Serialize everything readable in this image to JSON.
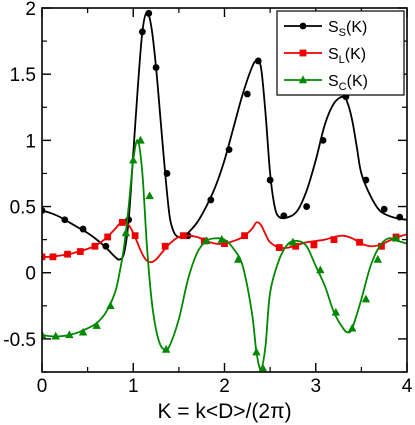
{
  "chart_data": {
    "type": "line",
    "xlabel": "K = k<D>/(2π)",
    "xlim": [
      0,
      4
    ],
    "ylim": [
      -0.75,
      2
    ],
    "xticks": [
      "0",
      "1",
      "2",
      "3",
      "4"
    ],
    "yticks": [
      "-0.5",
      "0",
      "0.5",
      "1",
      "1.5",
      "2"
    ],
    "grid": false,
    "legend_position": "top-right",
    "series": [
      {
        "name": "S",
        "subscript": "S",
        "suffix": "(K)",
        "color": "#000000",
        "marker": "circle",
        "x": [
          0,
          0.1,
          0.2,
          0.3,
          0.4,
          0.5,
          0.6,
          0.7,
          0.8,
          0.85,
          0.9,
          0.95,
          1.0,
          1.05,
          1.1,
          1.15,
          1.2,
          1.25,
          1.3,
          1.35,
          1.4,
          1.45,
          1.5,
          1.55,
          1.6,
          1.7,
          1.8,
          1.9,
          2.0,
          2.1,
          2.2,
          2.3,
          2.35,
          2.4,
          2.45,
          2.5,
          2.55,
          2.6,
          2.7,
          2.8,
          2.9,
          3.0,
          3.1,
          3.2,
          3.3,
          3.35,
          3.4,
          3.45,
          3.5,
          3.6,
          3.7,
          3.8,
          3.9,
          4.0
        ],
        "y": [
          0.47,
          0.45,
          0.42,
          0.38,
          0.34,
          0.3,
          0.25,
          0.19,
          0.12,
          0.1,
          0.15,
          0.4,
          0.9,
          1.4,
          1.82,
          1.97,
          1.85,
          1.55,
          1.15,
          0.75,
          0.42,
          0.3,
          0.27,
          0.27,
          0.3,
          0.38,
          0.5,
          0.65,
          0.85,
          1.1,
          1.35,
          1.55,
          1.6,
          1.55,
          1.2,
          0.75,
          0.5,
          0.42,
          0.42,
          0.47,
          0.62,
          0.85,
          1.12,
          1.28,
          1.33,
          1.28,
          1.15,
          0.95,
          0.75,
          0.58,
          0.47,
          0.43,
          0.41,
          0.4
        ],
        "marker_x": [
          0.0,
          0.25,
          0.45,
          0.7,
          0.95,
          1.1,
          1.17,
          1.25,
          1.37,
          1.6,
          1.85,
          2.05,
          2.25,
          2.37,
          2.5,
          2.65,
          2.9,
          3.08,
          3.33,
          3.55,
          3.75,
          3.92
        ],
        "marker_y": [
          0.47,
          0.4,
          0.33,
          0.2,
          0.4,
          1.82,
          1.96,
          1.55,
          0.75,
          0.28,
          0.55,
          0.93,
          1.35,
          1.6,
          0.7,
          0.43,
          0.5,
          1.0,
          1.33,
          0.7,
          0.48,
          0.42
        ]
      },
      {
        "name": "S",
        "subscript": "L",
        "suffix": "(K)",
        "color": "#ee0000",
        "marker": "square",
        "x": [
          0,
          0.1,
          0.2,
          0.3,
          0.4,
          0.5,
          0.6,
          0.7,
          0.8,
          0.85,
          0.9,
          0.95,
          1.0,
          1.05,
          1.1,
          1.15,
          1.2,
          1.25,
          1.3,
          1.4,
          1.5,
          1.6,
          1.7,
          1.8,
          1.9,
          2.0,
          2.1,
          2.2,
          2.3,
          2.35,
          2.4,
          2.45,
          2.5,
          2.6,
          2.7,
          2.8,
          2.9,
          3.0,
          3.1,
          3.2,
          3.3,
          3.4,
          3.5,
          3.6,
          3.7,
          3.8,
          3.9,
          4.0
        ],
        "y": [
          0.12,
          0.12,
          0.13,
          0.14,
          0.16,
          0.18,
          0.21,
          0.26,
          0.33,
          0.37,
          0.38,
          0.36,
          0.3,
          0.22,
          0.14,
          0.09,
          0.08,
          0.1,
          0.14,
          0.22,
          0.27,
          0.28,
          0.27,
          0.24,
          0.22,
          0.22,
          0.24,
          0.27,
          0.33,
          0.38,
          0.36,
          0.29,
          0.23,
          0.19,
          0.19,
          0.21,
          0.23,
          0.24,
          0.25,
          0.27,
          0.28,
          0.26,
          0.22,
          0.2,
          0.21,
          0.24,
          0.27,
          0.29
        ],
        "marker_x": [
          0.0,
          0.12,
          0.28,
          0.42,
          0.58,
          0.72,
          0.88,
          1.02,
          1.35,
          1.55,
          1.78,
          2.0,
          2.22,
          2.6,
          2.78,
          2.98,
          3.2,
          3.48,
          3.72,
          3.88
        ],
        "marker_y": [
          0.12,
          0.12,
          0.14,
          0.16,
          0.2,
          0.27,
          0.38,
          0.28,
          0.2,
          0.28,
          0.24,
          0.22,
          0.28,
          0.19,
          0.2,
          0.21,
          0.25,
          0.23,
          0.2,
          0.27
        ]
      },
      {
        "name": "S",
        "subscript": "C",
        "suffix": "(K)",
        "color": "#008800",
        "marker": "triangle",
        "x": [
          0,
          0.1,
          0.2,
          0.3,
          0.4,
          0.5,
          0.6,
          0.7,
          0.8,
          0.85,
          0.9,
          0.95,
          1.0,
          1.05,
          1.1,
          1.15,
          1.2,
          1.25,
          1.3,
          1.35,
          1.4,
          1.5,
          1.6,
          1.7,
          1.8,
          1.9,
          2.0,
          2.1,
          2.2,
          2.3,
          2.35,
          2.4,
          2.45,
          2.5,
          2.6,
          2.7,
          2.8,
          2.9,
          3.0,
          3.1,
          3.2,
          3.3,
          3.35,
          3.4,
          3.5,
          3.6,
          3.7,
          3.8,
          3.9,
          4.0
        ],
        "y": [
          -0.47,
          -0.48,
          -0.48,
          -0.47,
          -0.45,
          -0.42,
          -0.38,
          -0.3,
          -0.15,
          0.0,
          0.2,
          0.5,
          0.85,
          1.0,
          0.75,
          0.2,
          -0.2,
          -0.43,
          -0.55,
          -0.58,
          -0.55,
          -0.35,
          -0.05,
          0.15,
          0.24,
          0.26,
          0.25,
          0.18,
          0.05,
          -0.3,
          -0.6,
          -0.73,
          -0.55,
          -0.15,
          0.1,
          0.22,
          0.24,
          0.2,
          0.05,
          -0.1,
          -0.3,
          -0.42,
          -0.45,
          -0.42,
          -0.2,
          0.05,
          0.2,
          0.26,
          0.24,
          0.22
        ],
        "marker_x": [
          0.0,
          0.15,
          0.3,
          0.45,
          0.6,
          0.75,
          0.92,
          1.0,
          1.08,
          1.18,
          1.36,
          1.8,
          1.97,
          2.15,
          2.35,
          2.42,
          2.75,
          3.05,
          3.22,
          3.4,
          3.55,
          3.68,
          3.88
        ],
        "marker_y": [
          -0.47,
          -0.48,
          -0.47,
          -0.45,
          -0.4,
          -0.25,
          0.3,
          0.85,
          1.0,
          0.58,
          -0.58,
          0.24,
          0.25,
          0.1,
          -0.6,
          -0.72,
          0.23,
          0.02,
          -0.3,
          -0.42,
          -0.2,
          0.1,
          0.26
        ]
      }
    ]
  }
}
